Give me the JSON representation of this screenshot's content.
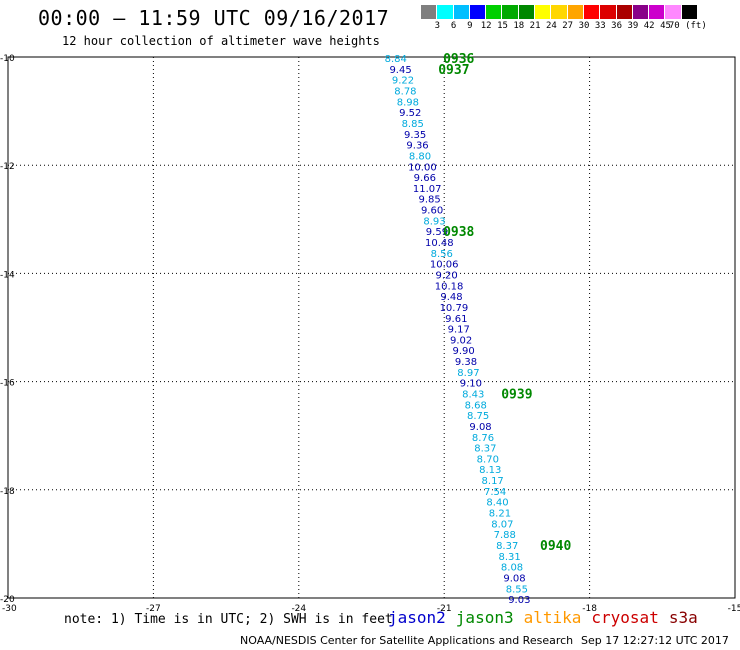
{
  "header": {
    "title": "00:00 – 11:59 UTC 09/16/2017",
    "subtitle": "12 hour collection of altimeter wave heights"
  },
  "legend": {
    "colors": [
      "#7f7f7f",
      "#00ffff",
      "#00bfff",
      "#0000ff",
      "#00d000",
      "#00aa00",
      "#008800",
      "#ffff00",
      "#ffd700",
      "#ffa500",
      "#ff0000",
      "#dd0000",
      "#aa0000",
      "#880088",
      "#cc00cc",
      "#ff88ff",
      "#000000"
    ],
    "labels": [
      "3",
      "6",
      "9",
      "12",
      "15",
      "18",
      "21",
      "24",
      "27",
      "30",
      "33",
      "36",
      "39",
      "42",
      "45",
      "70 (ft)"
    ]
  },
  "footer": {
    "note": "note: 1) Time is in UTC; 2) SWH is in feet",
    "credit": "NOAA/NESDIS Center for Satellite Applications and Research",
    "timestamp": "Sep 17 12:27:12 UTC 2017"
  },
  "satellites": [
    {
      "name": "jason2",
      "color": "#0000cc"
    },
    {
      "name": "jason3",
      "color": "#008800"
    },
    {
      "name": "altika",
      "color": "#ff9900"
    },
    {
      "name": "cryosat",
      "color": "#cc0000"
    },
    {
      "name": "s3a",
      "color": "#880000"
    }
  ],
  "chart_data": {
    "type": "scatter",
    "title": "00:00 – 11:59 UTC 09/16/2017",
    "subtitle": "12 hour collection of altimeter wave heights",
    "xlim": [
      -30,
      -15
    ],
    "ylim": [
      -20,
      -10
    ],
    "x_ticks": [
      "-30",
      "-27",
      "-24",
      "-21",
      "-18",
      "-15"
    ],
    "y_ticks": [
      "-10",
      "-12",
      "-14",
      "-16",
      "-18",
      "-20"
    ],
    "grid": true,
    "points": [
      {
        "x": -22.0,
        "y": -10.02,
        "value": "8.84",
        "color": "#00aadd"
      },
      {
        "x": -21.9,
        "y": -10.22,
        "value": "9.45",
        "color": "#0000aa"
      },
      {
        "x": -21.85,
        "y": -10.42,
        "value": "9.22",
        "color": "#00aadd"
      },
      {
        "x": -21.8,
        "y": -10.62,
        "value": "8.78",
        "color": "#00aadd"
      },
      {
        "x": -21.75,
        "y": -10.82,
        "value": "8.98",
        "color": "#00aadd"
      },
      {
        "x": -21.7,
        "y": -11.02,
        "value": "9.52",
        "color": "#0000aa"
      },
      {
        "x": -21.65,
        "y": -11.22,
        "value": "8.85",
        "color": "#00aadd"
      },
      {
        "x": -21.6,
        "y": -11.42,
        "value": "9.35",
        "color": "#0000aa"
      },
      {
        "x": -21.55,
        "y": -11.62,
        "value": "9.36",
        "color": "#0000aa"
      },
      {
        "x": -21.5,
        "y": -11.82,
        "value": "8.80",
        "color": "#00aadd"
      },
      {
        "x": -21.45,
        "y": -12.02,
        "value": "10.00",
        "color": "#0000aa"
      },
      {
        "x": -21.4,
        "y": -12.22,
        "value": "9.66",
        "color": "#0000aa"
      },
      {
        "x": -21.35,
        "y": -12.42,
        "value": "11.07",
        "color": "#0000aa"
      },
      {
        "x": -21.3,
        "y": -12.62,
        "value": "9.85",
        "color": "#0000aa"
      },
      {
        "x": -21.25,
        "y": -12.82,
        "value": "9.60",
        "color": "#0000aa"
      },
      {
        "x": -21.2,
        "y": -13.02,
        "value": "8.93",
        "color": "#00aadd"
      },
      {
        "x": -21.15,
        "y": -13.22,
        "value": "9.59",
        "color": "#0000aa"
      },
      {
        "x": -21.1,
        "y": -13.42,
        "value": "10.48",
        "color": "#0000aa"
      },
      {
        "x": -21.05,
        "y": -13.62,
        "value": "8.56",
        "color": "#00aadd"
      },
      {
        "x": -21.0,
        "y": -13.82,
        "value": "10.06",
        "color": "#0000aa"
      },
      {
        "x": -20.95,
        "y": -14.02,
        "value": "9.20",
        "color": "#0000aa"
      },
      {
        "x": -20.9,
        "y": -14.22,
        "value": "10.18",
        "color": "#0000aa"
      },
      {
        "x": -20.85,
        "y": -14.42,
        "value": "9.48",
        "color": "#0000aa"
      },
      {
        "x": -20.8,
        "y": -14.62,
        "value": "10.79",
        "color": "#0000aa"
      },
      {
        "x": -20.75,
        "y": -14.82,
        "value": "9.61",
        "color": "#0000aa"
      },
      {
        "x": -20.7,
        "y": -15.02,
        "value": "9.17",
        "color": "#0000aa"
      },
      {
        "x": -20.65,
        "y": -15.22,
        "value": "9.02",
        "color": "#0000aa"
      },
      {
        "x": -20.6,
        "y": -15.42,
        "value": "9.90",
        "color": "#0000aa"
      },
      {
        "x": -20.55,
        "y": -15.62,
        "value": "9.38",
        "color": "#0000aa"
      },
      {
        "x": -20.5,
        "y": -15.82,
        "value": "8.97",
        "color": "#00aadd"
      },
      {
        "x": -20.45,
        "y": -16.02,
        "value": "9.10",
        "color": "#0000aa"
      },
      {
        "x": -20.4,
        "y": -16.22,
        "value": "8.43",
        "color": "#00aadd"
      },
      {
        "x": -20.35,
        "y": -16.42,
        "value": "8.68",
        "color": "#00aadd"
      },
      {
        "x": -20.3,
        "y": -16.62,
        "value": "8.75",
        "color": "#00aadd"
      },
      {
        "x": -20.25,
        "y": -16.82,
        "value": "9.08",
        "color": "#0000aa"
      },
      {
        "x": -20.2,
        "y": -17.02,
        "value": "8.76",
        "color": "#00aadd"
      },
      {
        "x": -20.15,
        "y": -17.22,
        "value": "8.37",
        "color": "#00aadd"
      },
      {
        "x": -20.1,
        "y": -17.42,
        "value": "8.70",
        "color": "#00aadd"
      },
      {
        "x": -20.05,
        "y": -17.62,
        "value": "8.13",
        "color": "#00aadd"
      },
      {
        "x": -20.0,
        "y": -17.82,
        "value": "8.17",
        "color": "#00aadd"
      },
      {
        "x": -19.95,
        "y": -18.02,
        "value": "7.54",
        "color": "#00aadd"
      },
      {
        "x": -19.9,
        "y": -18.22,
        "value": "8.40",
        "color": "#00aadd"
      },
      {
        "x": -19.85,
        "y": -18.42,
        "value": "8.21",
        "color": "#00aadd"
      },
      {
        "x": -19.8,
        "y": -18.62,
        "value": "8.07",
        "color": "#00aadd"
      },
      {
        "x": -19.75,
        "y": -18.82,
        "value": "7.88",
        "color": "#00aadd"
      },
      {
        "x": -19.7,
        "y": -19.02,
        "value": "8.37",
        "color": "#00aadd"
      },
      {
        "x": -19.65,
        "y": -19.22,
        "value": "8.31",
        "color": "#00aadd"
      },
      {
        "x": -19.6,
        "y": -19.42,
        "value": "8.08",
        "color": "#00aadd"
      },
      {
        "x": -19.55,
        "y": -19.62,
        "value": "9.08",
        "color": "#0000aa"
      },
      {
        "x": -19.5,
        "y": -19.82,
        "value": "8.55",
        "color": "#00aadd"
      },
      {
        "x": -19.45,
        "y": -20.02,
        "value": "9.03",
        "color": "#0000aa"
      }
    ],
    "time_labels": [
      {
        "x": -20.7,
        "y": -10.02,
        "text": "0936"
      },
      {
        "x": -20.8,
        "y": -10.22,
        "text": "0937"
      },
      {
        "x": -20.7,
        "y": -13.22,
        "text": "0938"
      },
      {
        "x": -19.5,
        "y": -16.22,
        "text": "0939"
      },
      {
        "x": -18.7,
        "y": -19.02,
        "text": "0940"
      }
    ]
  }
}
